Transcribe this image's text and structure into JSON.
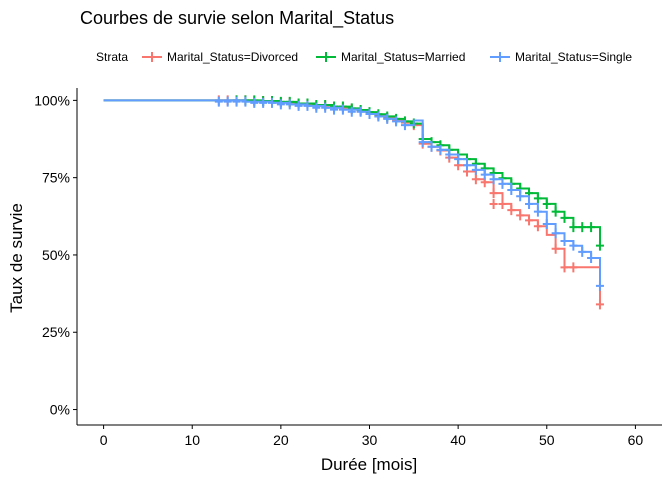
{
  "chart_data": {
    "type": "line",
    "title": "Courbes de survie selon Marital_Status",
    "xlabel": "Durée [mois]",
    "ylabel": "Taux de survie",
    "xlim": [
      -3,
      63
    ],
    "ylim": [
      -0.05,
      1.04
    ],
    "x_ticks": [
      0,
      10,
      20,
      30,
      40,
      50,
      60
    ],
    "x_tick_labels": [
      "0",
      "10",
      "20",
      "30",
      "40",
      "50",
      "60"
    ],
    "y_ticks": [
      0,
      0.25,
      0.5,
      0.75,
      1.0
    ],
    "y_tick_labels": [
      "0%",
      "25%",
      "50%",
      "75%",
      "100%"
    ],
    "grid": false,
    "legend": {
      "title": "Strata",
      "position": "top",
      "entries": [
        "Marital_Status=Divorced",
        "Marital_Status=Married",
        "Marital_Status=Single"
      ]
    },
    "series": [
      {
        "name": "Marital_Status=Divorced",
        "color": "#F8766D",
        "steps": [
          [
            0,
            1.0
          ],
          [
            13,
            1.0
          ],
          [
            17,
            0.997
          ],
          [
            20,
            0.993
          ],
          [
            22,
            0.988
          ],
          [
            24,
            0.983
          ],
          [
            26,
            0.977
          ],
          [
            28,
            0.972
          ],
          [
            29,
            0.966
          ],
          [
            30,
            0.958
          ],
          [
            31,
            0.951
          ],
          [
            32,
            0.944
          ],
          [
            33,
            0.936
          ],
          [
            34,
            0.928
          ],
          [
            35,
            0.92
          ],
          [
            36,
            0.86
          ],
          [
            37,
            0.85
          ],
          [
            38,
            0.838
          ],
          [
            39,
            0.815
          ],
          [
            40,
            0.79
          ],
          [
            41,
            0.77
          ],
          [
            42,
            0.745
          ],
          [
            43,
            0.735
          ],
          [
            44,
            0.7
          ],
          [
            45,
            0.665
          ],
          [
            46,
            0.645
          ],
          [
            47,
            0.628
          ],
          [
            48,
            0.612
          ],
          [
            49,
            0.593
          ],
          [
            50,
            0.565
          ],
          [
            51,
            0.52
          ],
          [
            52,
            0.46
          ],
          [
            56,
            0.34
          ]
        ],
        "censored": [
          [
            13,
            1.0
          ],
          [
            14,
            1.0
          ],
          [
            15,
            1.0
          ],
          [
            16,
            1.0
          ],
          [
            17,
            0.997
          ],
          [
            18,
            0.997
          ],
          [
            19,
            0.997
          ],
          [
            20,
            0.993
          ],
          [
            21,
            0.993
          ],
          [
            22,
            0.988
          ],
          [
            23,
            0.988
          ],
          [
            24,
            0.983
          ],
          [
            25,
            0.983
          ],
          [
            26,
            0.977
          ],
          [
            27,
            0.977
          ],
          [
            28,
            0.972
          ],
          [
            29,
            0.966
          ],
          [
            30,
            0.958
          ],
          [
            31,
            0.951
          ],
          [
            32,
            0.944
          ],
          [
            33,
            0.936
          ],
          [
            34,
            0.928
          ],
          [
            35,
            0.92
          ],
          [
            36,
            0.86
          ],
          [
            37,
            0.85
          ],
          [
            38,
            0.838
          ],
          [
            39,
            0.815
          ],
          [
            40,
            0.79
          ],
          [
            41,
            0.77
          ],
          [
            42,
            0.745
          ],
          [
            43,
            0.735
          ],
          [
            44,
            0.7
          ],
          [
            44,
            0.665
          ],
          [
            45,
            0.665
          ],
          [
            46,
            0.645
          ],
          [
            47,
            0.628
          ],
          [
            48,
            0.612
          ],
          [
            49,
            0.593
          ],
          [
            51,
            0.52
          ],
          [
            52,
            0.46
          ],
          [
            53,
            0.46
          ],
          [
            56,
            0.34
          ]
        ]
      },
      {
        "name": "Marital_Status=Married",
        "color": "#00BA38",
        "steps": [
          [
            0,
            1.0
          ],
          [
            14,
            1.0
          ],
          [
            18,
            0.998
          ],
          [
            20,
            0.995
          ],
          [
            22,
            0.99
          ],
          [
            24,
            0.985
          ],
          [
            26,
            0.98
          ],
          [
            28,
            0.974
          ],
          [
            29,
            0.969
          ],
          [
            30,
            0.962
          ],
          [
            31,
            0.955
          ],
          [
            32,
            0.948
          ],
          [
            33,
            0.94
          ],
          [
            34,
            0.932
          ],
          [
            35,
            0.925
          ],
          [
            36,
            0.875
          ],
          [
            37,
            0.865
          ],
          [
            38,
            0.855
          ],
          [
            39,
            0.84
          ],
          [
            40,
            0.825
          ],
          [
            41,
            0.81
          ],
          [
            42,
            0.795
          ],
          [
            43,
            0.78
          ],
          [
            44,
            0.765
          ],
          [
            45,
            0.748
          ],
          [
            46,
            0.73
          ],
          [
            47,
            0.715
          ],
          [
            48,
            0.7
          ],
          [
            49,
            0.683
          ],
          [
            50,
            0.665
          ],
          [
            51,
            0.64
          ],
          [
            52,
            0.62
          ],
          [
            53,
            0.59
          ],
          [
            56,
            0.53
          ]
        ],
        "censored": [
          [
            15,
            1.0
          ],
          [
            16,
            1.0
          ],
          [
            17,
            1.0
          ],
          [
            18,
            0.998
          ],
          [
            19,
            0.998
          ],
          [
            20,
            0.995
          ],
          [
            21,
            0.995
          ],
          [
            22,
            0.99
          ],
          [
            23,
            0.99
          ],
          [
            24,
            0.985
          ],
          [
            25,
            0.985
          ],
          [
            26,
            0.98
          ],
          [
            27,
            0.98
          ],
          [
            28,
            0.974
          ],
          [
            29,
            0.969
          ],
          [
            30,
            0.962
          ],
          [
            31,
            0.955
          ],
          [
            32,
            0.948
          ],
          [
            33,
            0.94
          ],
          [
            34,
            0.932
          ],
          [
            35,
            0.925
          ],
          [
            36,
            0.875
          ],
          [
            37,
            0.865
          ],
          [
            38,
            0.855
          ],
          [
            39,
            0.84
          ],
          [
            40,
            0.825
          ],
          [
            41,
            0.81
          ],
          [
            42,
            0.795
          ],
          [
            43,
            0.78
          ],
          [
            44,
            0.765
          ],
          [
            45,
            0.748
          ],
          [
            46,
            0.73
          ],
          [
            47,
            0.715
          ],
          [
            48,
            0.7
          ],
          [
            49,
            0.683
          ],
          [
            50,
            0.665
          ],
          [
            51,
            0.64
          ],
          [
            52,
            0.62
          ],
          [
            53,
            0.59
          ],
          [
            54,
            0.59
          ],
          [
            55,
            0.59
          ],
          [
            56,
            0.53
          ]
        ]
      },
      {
        "name": "Marital_Status=Single",
        "color": "#619CFF",
        "steps": [
          [
            0,
            1.0
          ],
          [
            13,
            1.0
          ],
          [
            16,
            0.996
          ],
          [
            19,
            0.992
          ],
          [
            21,
            0.987
          ],
          [
            23,
            0.982
          ],
          [
            25,
            0.976
          ],
          [
            27,
            0.97
          ],
          [
            29,
            0.963
          ],
          [
            30,
            0.956
          ],
          [
            31,
            0.948
          ],
          [
            32,
            0.94
          ],
          [
            33,
            0.932
          ],
          [
            34,
            0.92
          ],
          [
            35,
            0.935
          ],
          [
            36,
            0.865
          ],
          [
            37,
            0.85
          ],
          [
            38,
            0.84
          ],
          [
            39,
            0.825
          ],
          [
            40,
            0.81
          ],
          [
            41,
            0.79
          ],
          [
            42,
            0.775
          ],
          [
            43,
            0.76
          ],
          [
            44,
            0.745
          ],
          [
            45,
            0.73
          ],
          [
            46,
            0.71
          ],
          [
            47,
            0.69
          ],
          [
            48,
            0.665
          ],
          [
            49,
            0.64
          ],
          [
            50,
            0.6
          ],
          [
            51,
            0.57
          ],
          [
            52,
            0.545
          ],
          [
            53,
            0.53
          ],
          [
            54,
            0.51
          ],
          [
            55,
            0.49
          ],
          [
            56,
            0.4
          ]
        ],
        "censored": [
          [
            13,
            0.996
          ],
          [
            14,
            0.996
          ],
          [
            15,
            0.996
          ],
          [
            16,
            0.996
          ],
          [
            17,
            0.992
          ],
          [
            18,
            0.992
          ],
          [
            19,
            0.992
          ],
          [
            20,
            0.987
          ],
          [
            21,
            0.987
          ],
          [
            22,
            0.982
          ],
          [
            23,
            0.982
          ],
          [
            24,
            0.976
          ],
          [
            25,
            0.976
          ],
          [
            26,
            0.97
          ],
          [
            27,
            0.97
          ],
          [
            28,
            0.963
          ],
          [
            29,
            0.963
          ],
          [
            30,
            0.956
          ],
          [
            31,
            0.948
          ],
          [
            32,
            0.94
          ],
          [
            33,
            0.932
          ],
          [
            34,
            0.92
          ],
          [
            36,
            0.865
          ],
          [
            37,
            0.85
          ],
          [
            38,
            0.84
          ],
          [
            39,
            0.825
          ],
          [
            40,
            0.81
          ],
          [
            41,
            0.79
          ],
          [
            42,
            0.775
          ],
          [
            43,
            0.76
          ],
          [
            44,
            0.745
          ],
          [
            45,
            0.73
          ],
          [
            46,
            0.71
          ],
          [
            47,
            0.69
          ],
          [
            48,
            0.665
          ],
          [
            49,
            0.64
          ],
          [
            50,
            0.6
          ],
          [
            51,
            0.57
          ],
          [
            52,
            0.545
          ],
          [
            53,
            0.53
          ],
          [
            54,
            0.51
          ],
          [
            55,
            0.49
          ],
          [
            56,
            0.4
          ]
        ]
      }
    ]
  }
}
